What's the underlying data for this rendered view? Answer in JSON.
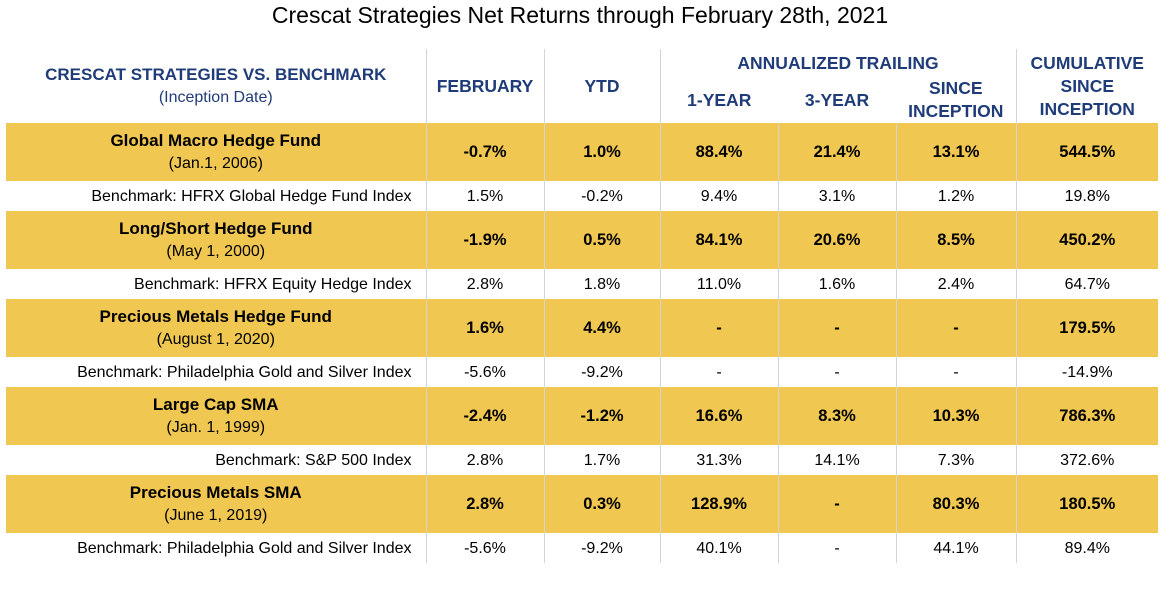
{
  "title": "Crescat Strategies Net Returns through February 28th, 2021",
  "header": {
    "first_title": "CRESCAT STRATEGIES VS. BENCHMARK",
    "first_sub": "(Inception Date)",
    "february": "FEBRUARY",
    "ytd": "YTD",
    "annualized_trailing": "ANNUALIZED TRAILING",
    "one_year": "1-YEAR",
    "three_year": "3-YEAR",
    "since_inception_line1": "SINCE",
    "since_inception_line2": "INCEPTION",
    "cumulative_line1": "CUMULATIVE",
    "cumulative_line2": "SINCE",
    "cumulative_line3": "INCEPTION"
  },
  "chart_data": {
    "type": "table",
    "title": "Crescat Strategies Net Returns through February 28th, 2021",
    "columns": [
      "CRESCAT STRATEGIES VS. BENCHMARK (Inception Date)",
      "FEBRUARY",
      "YTD",
      "1-YEAR",
      "3-YEAR",
      "SINCE INCEPTION",
      "CUMULATIVE SINCE INCEPTION"
    ],
    "rows": [
      {
        "kind": "fund",
        "name": "Global Macro Hedge Fund",
        "date": "(Jan.1, 2006)",
        "values": [
          "-0.7%",
          "1.0%",
          "88.4%",
          "21.4%",
          "13.1%",
          "544.5%"
        ]
      },
      {
        "kind": "bench",
        "name": "Benchmark: HFRX Global Hedge Fund Index",
        "values": [
          "1.5%",
          "-0.2%",
          "9.4%",
          "3.1%",
          "1.2%",
          "19.8%"
        ]
      },
      {
        "kind": "fund",
        "name": "Long/Short Hedge Fund",
        "date": "(May 1, 2000)",
        "values": [
          "-1.9%",
          "0.5%",
          "84.1%",
          "20.6%",
          "8.5%",
          "450.2%"
        ]
      },
      {
        "kind": "bench",
        "name": "Benchmark: HFRX Equity Hedge Index",
        "values": [
          "2.8%",
          "1.8%",
          "11.0%",
          "1.6%",
          "2.4%",
          "64.7%"
        ]
      },
      {
        "kind": "fund",
        "name": "Precious Metals Hedge Fund",
        "date": "(August 1, 2020)",
        "values": [
          "1.6%",
          "4.4%",
          "-",
          "-",
          "-",
          "179.5%"
        ]
      },
      {
        "kind": "bench",
        "name": "Benchmark: Philadelphia Gold and Silver Index",
        "values": [
          "-5.6%",
          "-9.2%",
          "-",
          "-",
          "-",
          "-14.9%"
        ]
      },
      {
        "kind": "fund",
        "name": "Large Cap SMA",
        "date": "(Jan. 1, 1999)",
        "values": [
          "-2.4%",
          "-1.2%",
          "16.6%",
          "8.3%",
          "10.3%",
          "786.3%"
        ]
      },
      {
        "kind": "bench",
        "name": "Benchmark: S&P 500 Index",
        "values": [
          "2.8%",
          "1.7%",
          "31.3%",
          "14.1%",
          "7.3%",
          "372.6%"
        ]
      },
      {
        "kind": "fund",
        "name": "Precious Metals SMA",
        "date": "(June 1, 2019)",
        "values": [
          "2.8%",
          "0.3%",
          "128.9%",
          "-",
          "80.3%",
          "180.5%"
        ]
      },
      {
        "kind": "bench",
        "name": "Benchmark: Philadelphia Gold and Silver Index",
        "values": [
          "-5.6%",
          "-9.2%",
          "40.1%",
          "-",
          "44.1%",
          "89.4%"
        ]
      }
    ],
    "colors": {
      "fund_row": "#f0c751",
      "header_text": "#1f3c79",
      "bench_row": "#ffffff"
    }
  }
}
